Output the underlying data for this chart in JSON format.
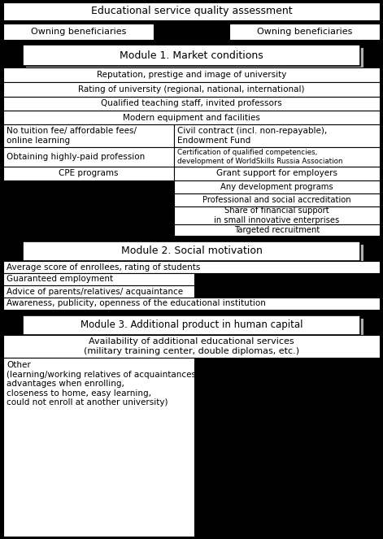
{
  "bg_color": "#000000",
  "white": "#ffffff",
  "light_gray": "#b0b0b0",
  "title": "Educational service quality assessment",
  "left_box": "Owning beneficiaries",
  "right_box": "Owning beneficiaries",
  "module1": "Module 1. Market conditions",
  "module2": "Module 2. Social motivation",
  "module3": "Module 3. Additional product in human capital",
  "m1_full_rows": [
    "Reputation, prestige and image of university",
    "Rating of university (regional, national, international)",
    "Qualified teaching staff, invited professors",
    "Modern equipment and facilities"
  ],
  "m1_left_col": [
    "No tuition fee/ affordable fees/\nonline learning",
    "Obtaining highly-paid profession",
    "CPE programs"
  ],
  "m1_right_col": [
    "Civil contract (incl. non-repayable),\nEndowment Fund",
    "Certification of qualified competencies,\ndevelopment of WorldSkills Russia Association",
    "Grant support for employers"
  ],
  "m1_right_only": [
    "Any development programs",
    "Professional and social accreditation",
    "Share of financial support\nin small innovative enterprises",
    "Targeted recruitment"
  ],
  "m2_rows": [
    "Average score of enrollees, rating of students",
    "Guaranteed employment",
    "Advice of parents/relatives/ acquaintance",
    "Awareness, publicity, openness of the educational institution"
  ],
  "m3_full_row": "Availability of additional educational services\n(military training center, double diplomas, etc.)",
  "m3_half_row": "Other\n(learning/working relatives of acquaintances,\nadvantages when enrolling,\ncloseness to home, easy learning,\ncould not enroll at another university)"
}
